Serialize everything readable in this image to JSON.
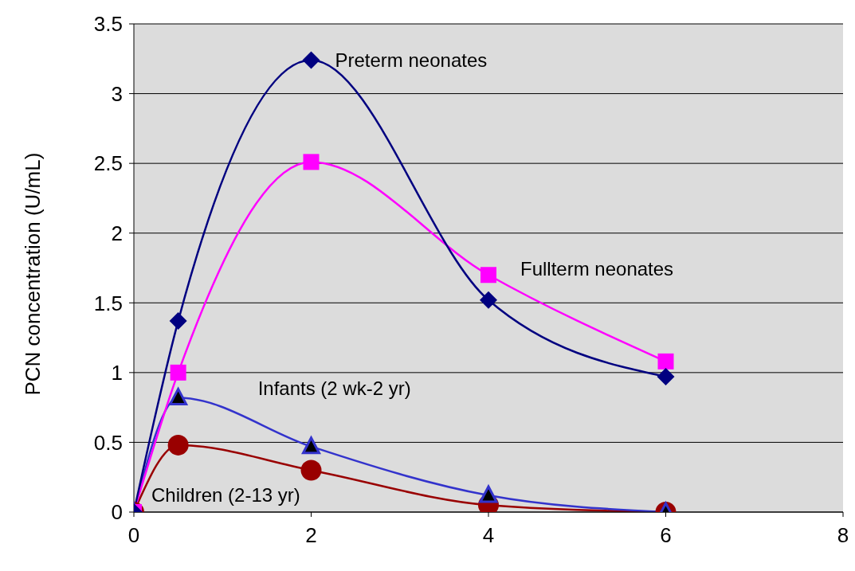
{
  "chart_data": {
    "type": "line",
    "ylabel": "PCN concentration (U/mL)",
    "x": [
      0,
      0.5,
      2,
      4,
      6
    ],
    "series": [
      {
        "name": "Preterm neonates",
        "color": "#000080",
        "marker": "diamond",
        "values": [
          0,
          1.37,
          3.24,
          1.52,
          0.97
        ]
      },
      {
        "name": "Fullterm neonates",
        "color": "#ff00ff",
        "marker": "square",
        "values": [
          0,
          1.0,
          2.51,
          1.7,
          1.08
        ]
      },
      {
        "name": "Infants (2 wk-2 yr)",
        "color": "#3333cc",
        "marker": "triangle",
        "values": [
          0,
          0.82,
          0.47,
          0.12,
          0
        ]
      },
      {
        "name": "Children (2-13 yr)",
        "color": "#990000",
        "marker": "circle",
        "values": [
          0,
          0.48,
          0.3,
          0.05,
          0
        ]
      }
    ],
    "xlim": [
      0,
      8
    ],
    "xticks": [
      0,
      2,
      4,
      6,
      8
    ],
    "ylim": [
      0,
      3.5
    ],
    "yticks": [
      0,
      0.5,
      1,
      1.5,
      2,
      2.5,
      3,
      3.5
    ],
    "grid": "y",
    "line_style": "solid"
  }
}
